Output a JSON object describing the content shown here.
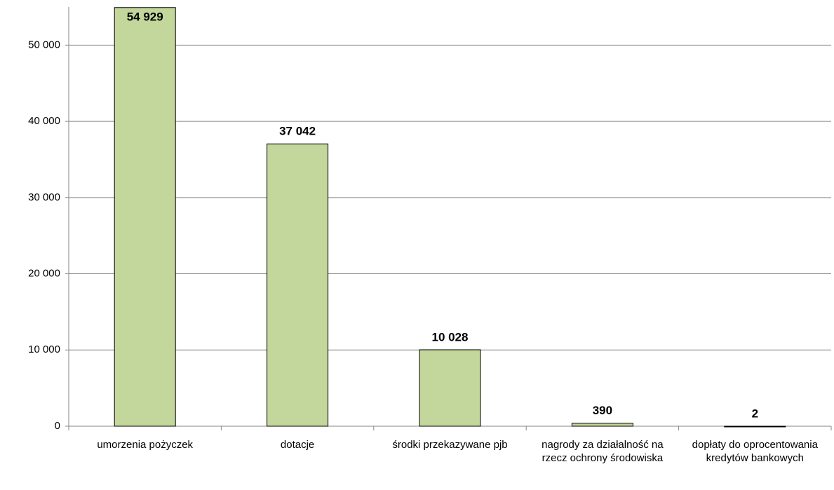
{
  "chart_data": {
    "type": "bar",
    "categories": [
      "umorzenia pożyczek",
      "dotacje",
      "środki przekazywane pjb",
      "nagrody za działalność na rzecz ochrony środowiska",
      "dopłaty do oprocentowania kredytów bankowych"
    ],
    "values": [
      54929,
      37042,
      10028,
      390,
      2
    ],
    "value_labels": [
      "54 929",
      "37 042",
      "10 028",
      "390",
      "2"
    ],
    "color": "#c3d69b",
    "ylim": [
      0,
      55000
    ],
    "yticks": [
      0,
      {
        "value": 10000,
        "label": "10 000"
      },
      {
        "value": 20000,
        "label": "20 000"
      },
      {
        "value": 30000,
        "label": "30 000"
      },
      {
        "value": 40000,
        "label": "40 000"
      },
      {
        "value": 50000,
        "label": "50 000"
      }
    ],
    "grid": true
  }
}
